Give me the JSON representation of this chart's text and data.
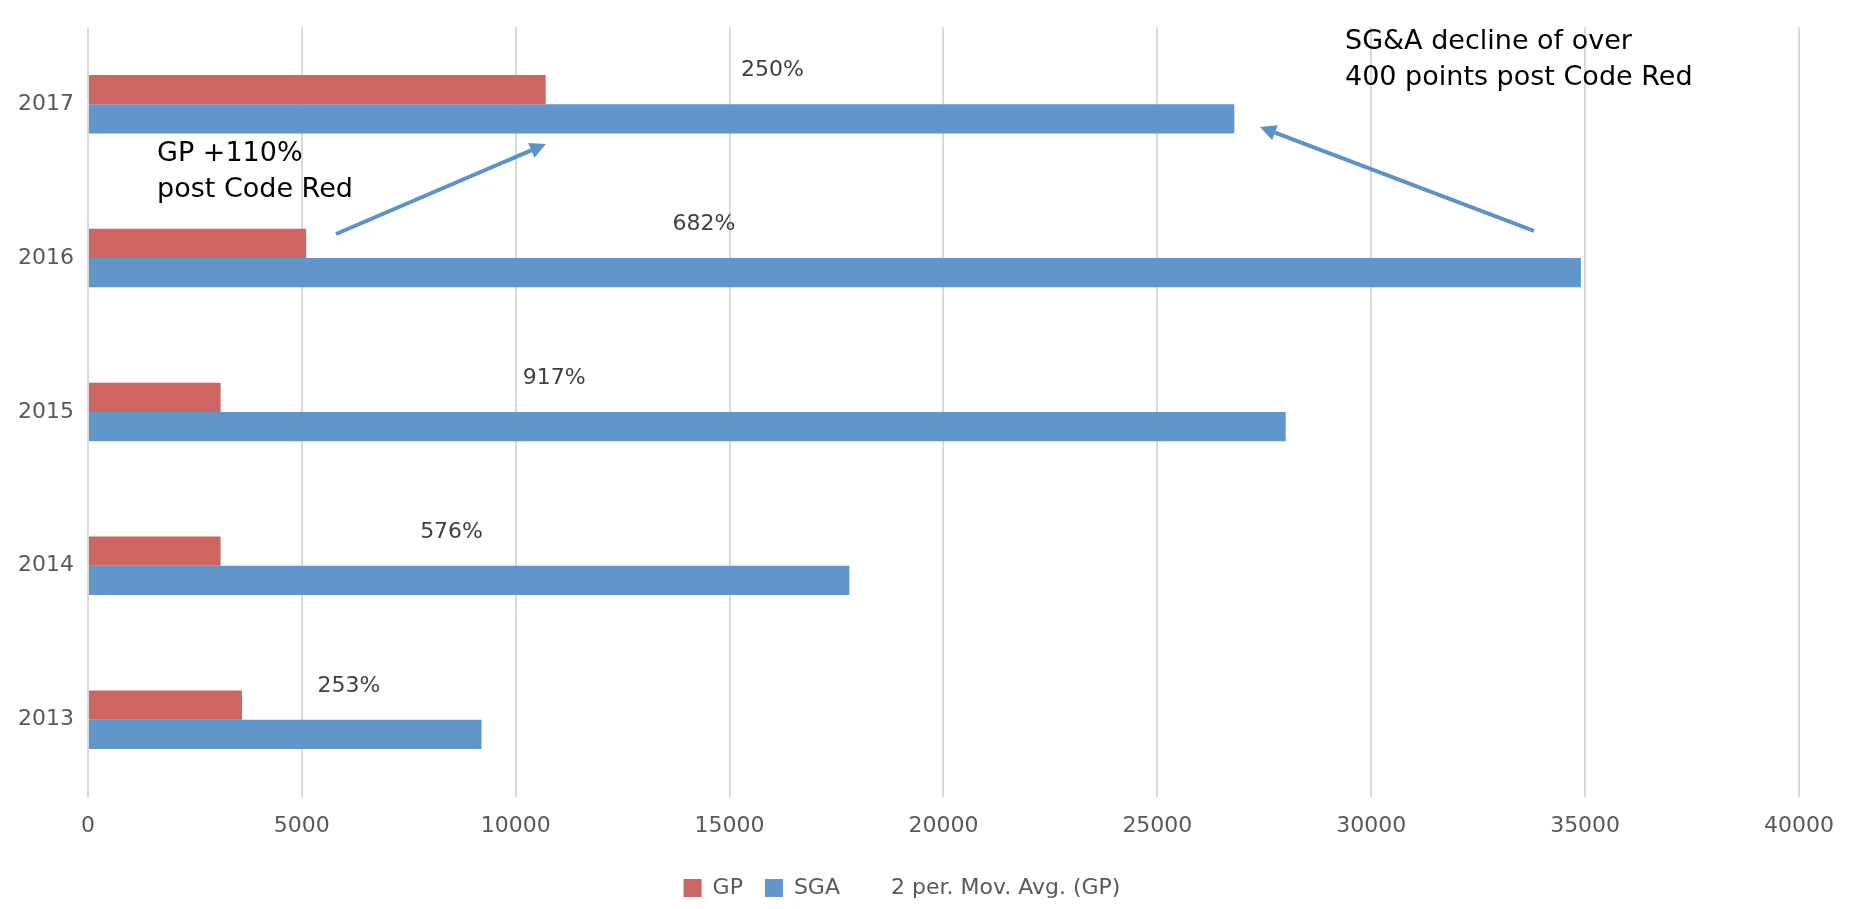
{
  "chart_data": {
    "type": "bar",
    "orientation": "horizontal",
    "categories": [
      "2017",
      "2016",
      "2015",
      "2014",
      "2013"
    ],
    "series": [
      {
        "name": "GP",
        "color": "#cd6660",
        "values": [
          10700,
          5100,
          3100,
          3100,
          3600
        ]
      },
      {
        "name": "SGA",
        "color": "#6096c9",
        "values": [
          26800,
          34900,
          28000,
          17800,
          9200
        ]
      },
      {
        "name": "2 per. Mov. Avg. (GP)",
        "type": "line",
        "values": [
          null,
          null,
          null,
          null,
          null
        ]
      }
    ],
    "xlim": [
      0,
      40000
    ],
    "xticks": [
      0,
      5000,
      10000,
      15000,
      20000,
      25000,
      30000,
      35000,
      40000
    ],
    "grid": "x",
    "legend": "bottom",
    "annotations": [
      {
        "text": "250%",
        "x": 16000,
        "y": "2017"
      },
      {
        "text": "682%",
        "x": 14400,
        "y": "2016"
      },
      {
        "text": "917%",
        "x": 10900,
        "y": "2015"
      },
      {
        "text": "576%",
        "x": 8500,
        "y": "2014"
      },
      {
        "text": "253%",
        "x": 6100,
        "y": "2013"
      },
      "GP +110%\npost Code Red",
      "SG&A decline of over\n400 points post Code Red"
    ]
  }
}
